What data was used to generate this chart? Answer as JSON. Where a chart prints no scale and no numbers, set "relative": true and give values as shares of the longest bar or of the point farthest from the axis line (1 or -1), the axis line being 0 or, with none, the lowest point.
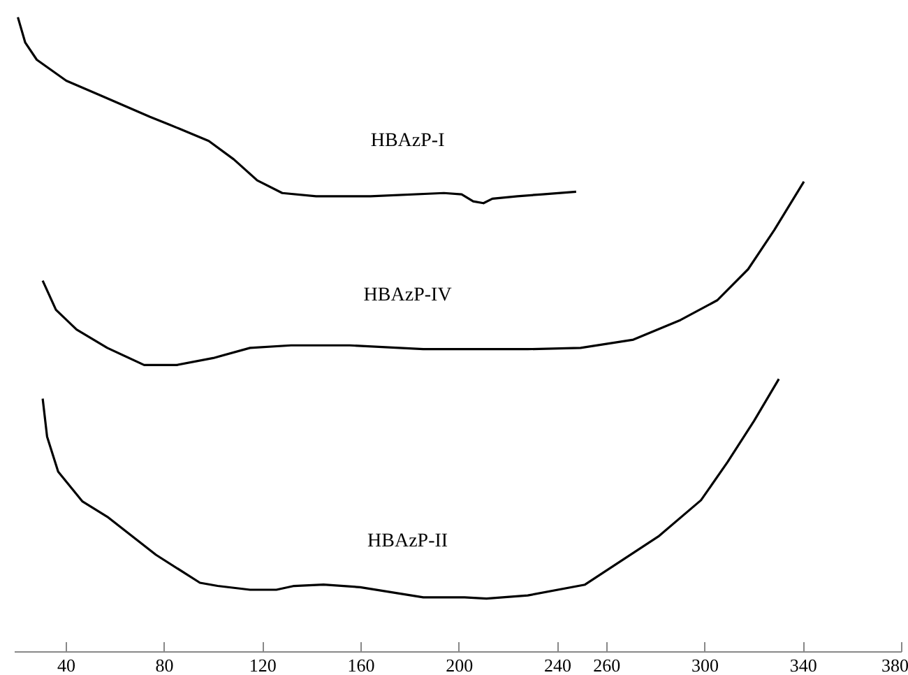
{
  "chart_data": {
    "type": "line",
    "relative": true,
    "grid": false,
    "legend": false,
    "marker": "none",
    "line_style": "solid",
    "xlim": [
      19,
      380
    ],
    "xticks": [
      40,
      80,
      120,
      160,
      200,
      240,
      260,
      300,
      340,
      380
    ],
    "series": [
      {
        "name": "HBAzP-I",
        "color": "#000000",
        "x": [
          20.3,
          23.3,
          28.0,
          40,
          54.4,
          74.1,
          81.9,
          98.0,
          108.2,
          117.7,
          127.9,
          141.7,
          163.8,
          193.7,
          200.9,
          205.6,
          209.8,
          213.4,
          223.6,
          233.8,
          247.5
        ],
        "values": [
          1.0,
          0.96,
          0.933,
          0.9,
          0.876,
          0.843,
          0.831,
          0.805,
          0.776,
          0.743,
          0.723,
          0.718,
          0.718,
          0.723,
          0.721,
          0.71,
          0.707,
          0.714,
          0.718,
          0.721,
          0.725
        ]
      },
      {
        "name": "HBAzP-IV",
        "color": "#000000",
        "x": [
          30.4,
          35.8,
          44.2,
          56.7,
          71.7,
          84.9,
          99.8,
          114.8,
          131.5,
          155.4,
          185.3,
          227.8,
          249.3,
          270.8,
          290.0,
          304.9,
          317.5,
          328.2,
          340.2
        ],
        "values": [
          0.585,
          0.539,
          0.508,
          0.479,
          0.452,
          0.452,
          0.463,
          0.479,
          0.483,
          0.483,
          0.477,
          0.477,
          0.479,
          0.492,
          0.523,
          0.554,
          0.603,
          0.665,
          0.741
        ]
      },
      {
        "name": "HBAzP-II",
        "color": "#000000",
        "x": [
          30.4,
          32.2,
          36.7,
          46.6,
          56.7,
          76.5,
          94.4,
          101.6,
          114.8,
          125.5,
          132.7,
          144.7,
          159.6,
          185.3,
          202.1,
          211.0,
          227.8,
          251.1,
          281.0,
          298.3,
          309.1,
          319.9,
          330.0
        ],
        "values": [
          0.399,
          0.339,
          0.284,
          0.237,
          0.213,
          0.153,
          0.109,
          0.104,
          0.098,
          0.098,
          0.104,
          0.106,
          0.102,
          0.086,
          0.086,
          0.084,
          0.089,
          0.106,
          0.182,
          0.239,
          0.299,
          0.364,
          0.43
        ]
      }
    ]
  }
}
